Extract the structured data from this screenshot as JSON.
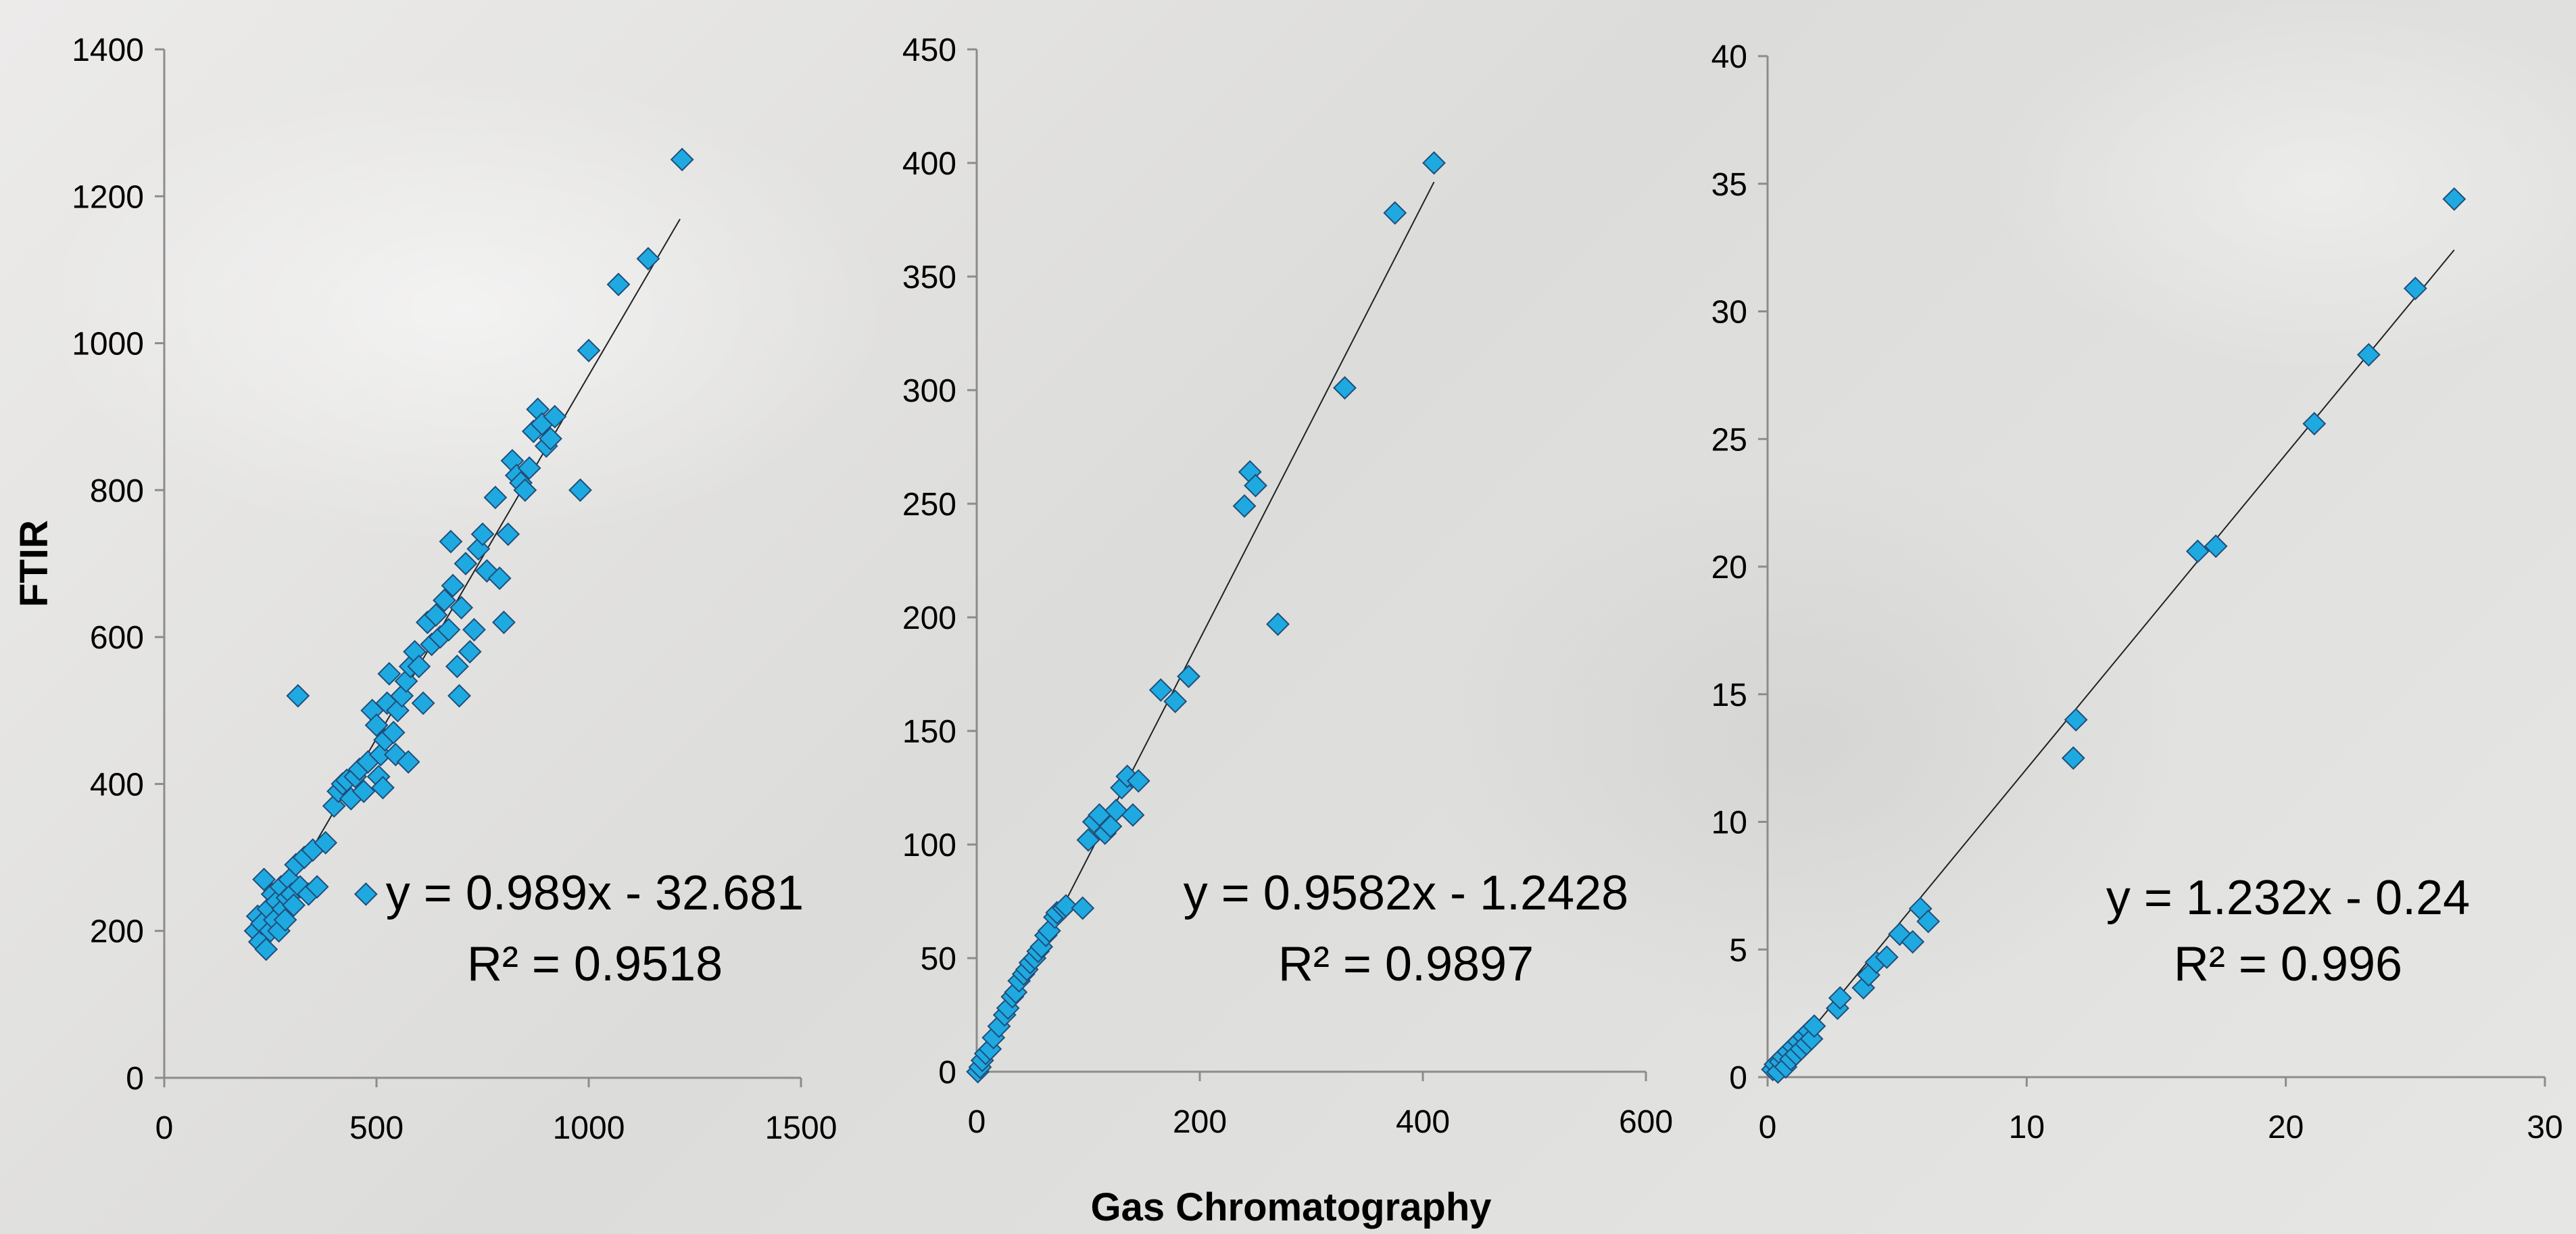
{
  "shared_xlabel": "Gas Chromatography",
  "colors": {
    "marker_fill": "#1fa9e1",
    "marker_stroke": "#1f4e79",
    "axis": "#8c8c8c",
    "trendline": "#222222",
    "text": "#000000"
  },
  "chart_data": [
    {
      "type": "scatter",
      "title": "",
      "ylabel": "FTIR",
      "xlabel": "",
      "xlim": [
        0,
        1500
      ],
      "ylim": [
        0,
        1400
      ],
      "xticks": [
        0,
        500,
        1000,
        1500
      ],
      "yticks": [
        0,
        200,
        400,
        600,
        800,
        1000,
        1200,
        1400
      ],
      "xtick_labels": [
        "0",
        "500",
        "1000",
        "1500"
      ],
      "ytick_labels": [
        "0",
        "200",
        "400",
        "600",
        "800",
        "1000",
        "1200",
        "1400"
      ],
      "grid": false,
      "legend": "none",
      "trendline": {
        "slope": 0.989,
        "intercept": -32.681,
        "x_range": [
          215,
          1215
        ]
      },
      "annotation": [
        "y = 0.989x - 32.681",
        "R² = 0.9518"
      ],
      "points": [
        [
          215,
          200
        ],
        [
          220,
          220
        ],
        [
          225,
          185
        ],
        [
          230,
          210
        ],
        [
          235,
          270
        ],
        [
          240,
          175
        ],
        [
          245,
          230
        ],
        [
          250,
          200
        ],
        [
          255,
          250
        ],
        [
          260,
          215
        ],
        [
          265,
          240
        ],
        [
          270,
          200
        ],
        [
          275,
          260
        ],
        [
          280,
          230
        ],
        [
          285,
          215
        ],
        [
          290,
          245
        ],
        [
          295,
          270
        ],
        [
          300,
          250
        ],
        [
          305,
          235
        ],
        [
          310,
          290
        ],
        [
          315,
          520
        ],
        [
          320,
          260
        ],
        [
          330,
          300
        ],
        [
          340,
          250
        ],
        [
          350,
          310
        ],
        [
          360,
          260
        ],
        [
          380,
          320
        ],
        [
          400,
          370
        ],
        [
          410,
          390
        ],
        [
          420,
          400
        ],
        [
          430,
          405
        ],
        [
          440,
          380
        ],
        [
          450,
          410
        ],
        [
          460,
          420
        ],
        [
          470,
          390
        ],
        [
          475,
          250
        ],
        [
          480,
          430
        ],
        [
          490,
          500
        ],
        [
          500,
          480
        ],
        [
          505,
          410
        ],
        [
          510,
          440
        ],
        [
          515,
          395
        ],
        [
          520,
          460
        ],
        [
          525,
          510
        ],
        [
          530,
          550
        ],
        [
          540,
          470
        ],
        [
          545,
          440
        ],
        [
          550,
          500
        ],
        [
          560,
          520
        ],
        [
          570,
          540
        ],
        [
          575,
          430
        ],
        [
          580,
          560
        ],
        [
          590,
          580
        ],
        [
          600,
          560
        ],
        [
          610,
          510
        ],
        [
          620,
          620
        ],
        [
          630,
          590
        ],
        [
          640,
          630
        ],
        [
          650,
          600
        ],
        [
          660,
          650
        ],
        [
          670,
          610
        ],
        [
          675,
          730
        ],
        [
          680,
          670
        ],
        [
          690,
          560
        ],
        [
          695,
          520
        ],
        [
          700,
          640
        ],
        [
          710,
          700
        ],
        [
          720,
          580
        ],
        [
          730,
          610
        ],
        [
          740,
          720
        ],
        [
          750,
          740
        ],
        [
          760,
          690
        ],
        [
          780,
          790
        ],
        [
          790,
          680
        ],
        [
          800,
          620
        ],
        [
          810,
          740
        ],
        [
          820,
          840
        ],
        [
          830,
          820
        ],
        [
          840,
          810
        ],
        [
          850,
          800
        ],
        [
          860,
          830
        ],
        [
          870,
          880
        ],
        [
          880,
          910
        ],
        [
          890,
          890
        ],
        [
          900,
          860
        ],
        [
          910,
          870
        ],
        [
          920,
          900
        ],
        [
          980,
          800
        ],
        [
          1000,
          990
        ],
        [
          1070,
          1080
        ],
        [
          1140,
          1115
        ],
        [
          1220,
          1250
        ]
      ]
    },
    {
      "type": "scatter",
      "title": "",
      "ylabel": "",
      "xlabel": "",
      "xlim": [
        0,
        600
      ],
      "ylim": [
        0,
        450
      ],
      "xticks": [
        0,
        200,
        400,
        600
      ],
      "yticks": [
        0,
        50,
        100,
        150,
        200,
        250,
        300,
        350,
        400,
        450
      ],
      "xtick_labels": [
        "0",
        "200",
        "400",
        "600"
      ],
      "ytick_labels": [
        "0",
        "50",
        "100",
        "150",
        "200",
        "250",
        "300",
        "350",
        "400",
        "450"
      ],
      "grid": false,
      "legend": "none",
      "trendline": {
        "slope": 0.9582,
        "intercept": -1.2428,
        "x_range": [
          0,
          410
        ]
      },
      "annotation": [
        "y = 0.9582x - 1.2428",
        "R² = 0.9897"
      ],
      "points": [
        [
          1,
          0
        ],
        [
          3,
          2
        ],
        [
          5,
          5
        ],
        [
          8,
          8
        ],
        [
          12,
          10
        ],
        [
          15,
          15
        ],
        [
          20,
          20
        ],
        [
          25,
          25
        ],
        [
          28,
          28
        ],
        [
          32,
          33
        ],
        [
          35,
          35
        ],
        [
          38,
          40
        ],
        [
          42,
          43
        ],
        [
          45,
          45
        ],
        [
          48,
          48
        ],
        [
          52,
          50
        ],
        [
          55,
          53
        ],
        [
          58,
          55
        ],
        [
          62,
          60
        ],
        [
          65,
          62
        ],
        [
          70,
          68
        ],
        [
          72,
          70
        ],
        [
          78,
          72
        ],
        [
          80,
          73
        ],
        [
          95,
          72
        ],
        [
          100,
          102
        ],
        [
          105,
          110
        ],
        [
          110,
          113
        ],
        [
          115,
          105
        ],
        [
          120,
          108
        ],
        [
          125,
          115
        ],
        [
          130,
          125
        ],
        [
          135,
          130
        ],
        [
          140,
          113
        ],
        [
          145,
          128
        ],
        [
          165,
          168
        ],
        [
          178,
          163
        ],
        [
          190,
          174
        ],
        [
          240,
          249
        ],
        [
          245,
          264
        ],
        [
          250,
          258
        ],
        [
          270,
          197
        ],
        [
          330,
          301
        ],
        [
          375,
          378
        ],
        [
          410,
          400
        ]
      ]
    },
    {
      "type": "scatter",
      "title": "",
      "ylabel": "",
      "xlabel": "",
      "xlim": [
        0,
        30
      ],
      "ylim": [
        0,
        40
      ],
      "xticks": [
        0,
        10,
        20,
        30
      ],
      "yticks": [
        0,
        5,
        10,
        15,
        20,
        25,
        30,
        35,
        40
      ],
      "xtick_labels": [
        "0",
        "10",
        "20",
        "30"
      ],
      "ytick_labels": [
        "0",
        "5",
        "10",
        "15",
        "20",
        "25",
        "30",
        "35",
        "40"
      ],
      "grid": false,
      "legend": "none",
      "trendline": {
        "slope": 1.232,
        "intercept": -0.24,
        "x_range": [
          0.2,
          26.5
        ]
      },
      "annotation": [
        "y = 1.232x - 0.24",
        "R² = 0.996"
      ],
      "points": [
        [
          0.2,
          0.3
        ],
        [
          0.3,
          0.5
        ],
        [
          0.4,
          0.2
        ],
        [
          0.5,
          0.6
        ],
        [
          0.6,
          0.8
        ],
        [
          0.7,
          0.4
        ],
        [
          0.8,
          1.0
        ],
        [
          0.9,
          0.7
        ],
        [
          1.0,
          1.2
        ],
        [
          1.1,
          0.9
        ],
        [
          1.2,
          1.4
        ],
        [
          1.3,
          1.1
        ],
        [
          1.4,
          1.6
        ],
        [
          1.5,
          1.3
        ],
        [
          1.6,
          1.8
        ],
        [
          1.7,
          1.5
        ],
        [
          1.8,
          2.0
        ],
        [
          2.7,
          2.7
        ],
        [
          2.8,
          3.1
        ],
        [
          3.7,
          3.5
        ],
        [
          3.9,
          4.0
        ],
        [
          4.2,
          4.5
        ],
        [
          4.6,
          4.7
        ],
        [
          5.1,
          5.6
        ],
        [
          5.6,
          5.3
        ],
        [
          5.9,
          6.6
        ],
        [
          6.2,
          6.1
        ],
        [
          11.8,
          12.5
        ],
        [
          11.9,
          14.0
        ],
        [
          16.6,
          20.6
        ],
        [
          17.3,
          20.8
        ],
        [
          21.1,
          25.6
        ],
        [
          23.2,
          28.3
        ],
        [
          25.0,
          30.9
        ],
        [
          26.5,
          34.4
        ]
      ]
    }
  ]
}
